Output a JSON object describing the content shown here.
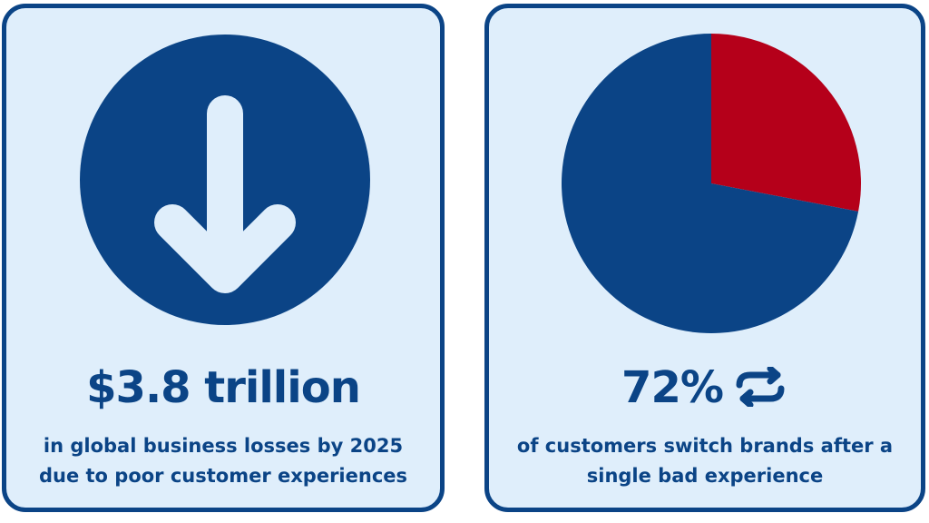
{
  "left_card": {
    "stat": "$3.8 trillion",
    "caption_lines": [
      "in global business losses by 2025",
      "due to poor customer experiences"
    ],
    "icon": "arrow-down-icon"
  },
  "right_card": {
    "stat": "72%",
    "caption_lines": [
      "of customers switch brands after a",
      "single bad experience"
    ],
    "icon": "swap-arrows-icon"
  },
  "chart_data": {
    "type": "pie",
    "title": "",
    "slices": [
      {
        "value": 72,
        "color": "#0b4486"
      },
      {
        "value": 28,
        "color": "#b5001a"
      }
    ],
    "start": "top",
    "direction": "clockwise",
    "highlight_first": false
  },
  "colors": {
    "primary": "#0b4486",
    "accent": "#b5001a",
    "card_bg": "#dfeefb",
    "icon_fill": "#dfeefb"
  }
}
